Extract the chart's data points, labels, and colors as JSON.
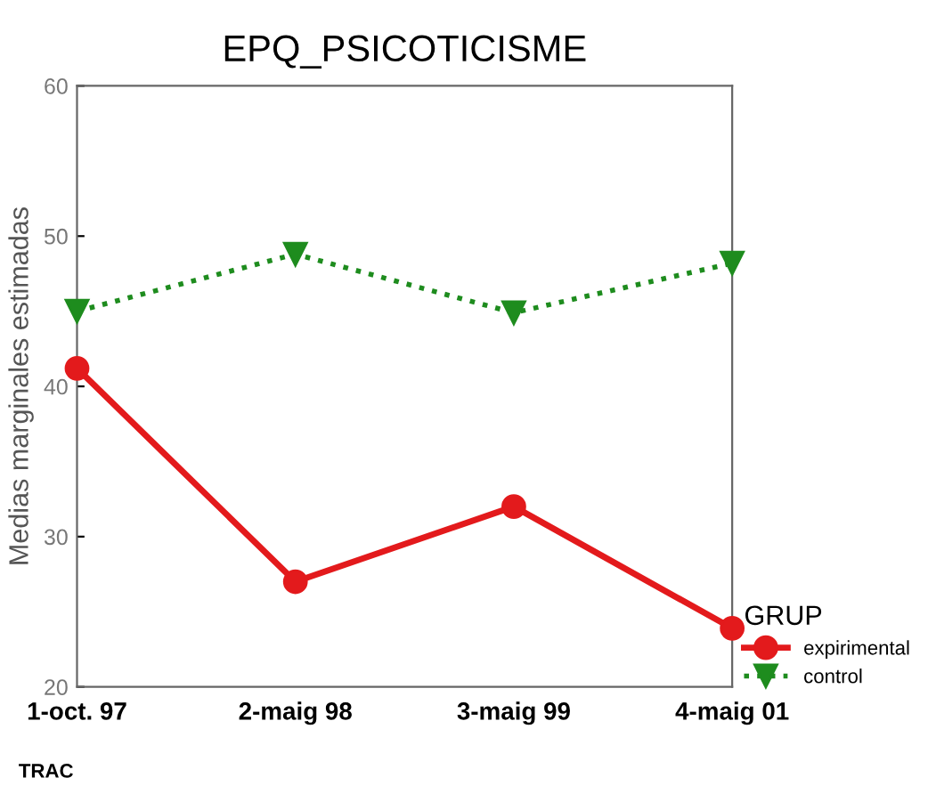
{
  "chart_data": {
    "type": "line",
    "title": "EPQ_PSICOTICISME",
    "xlabel": "TRAC",
    "ylabel": "Medias marginales estimadas",
    "legend_title": "GRUP",
    "categories": [
      "1-oct. 97",
      "2-maig 98",
      "3-maig 99",
      "4-maig 01"
    ],
    "series": [
      {
        "name": "expirimental",
        "color": "#e31a1c",
        "values": [
          41.2,
          27.0,
          32.0,
          23.9
        ],
        "marker": "circle",
        "line_style": "solid"
      },
      {
        "name": "control",
        "color": "#1e8c1e",
        "values": [
          45.0,
          48.8,
          44.9,
          48.2
        ],
        "marker": "triangle",
        "line_style": "dotted"
      }
    ],
    "ylim": [
      20,
      60
    ],
    "yticks": [
      20,
      30,
      40,
      50,
      60
    ],
    "grid": false,
    "legend": "right"
  }
}
